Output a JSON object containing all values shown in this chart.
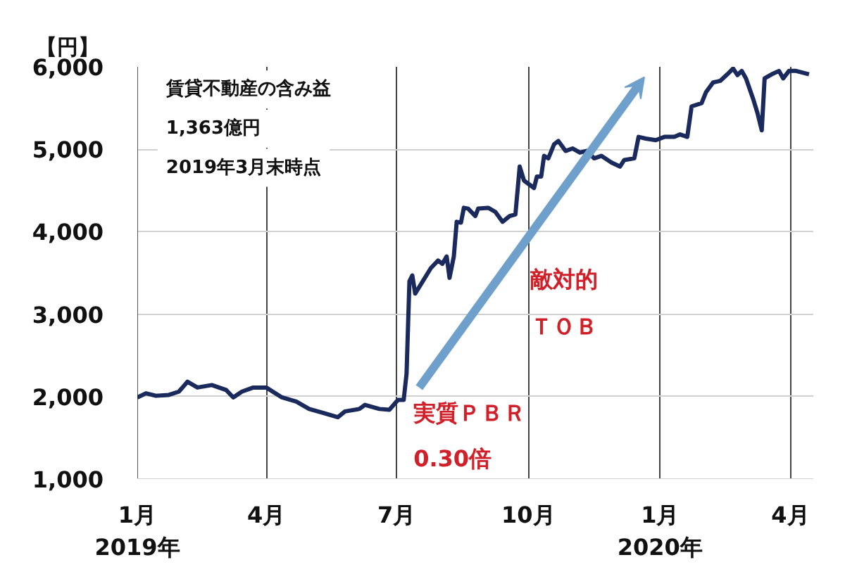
{
  "chart_data": {
    "type": "line",
    "ylabel": "【円】",
    "x": [
      "2019-01-01",
      "2019-01-07",
      "2019-01-14",
      "2019-01-23",
      "2019-01-30",
      "2019-02-05",
      "2019-02-12",
      "2019-02-22",
      "2019-03-04",
      "2019-03-09",
      "2019-03-15",
      "2019-03-23",
      "2019-04-01",
      "2019-04-12",
      "2019-04-22",
      "2019-05-01",
      "2019-05-11",
      "2019-05-21",
      "2019-05-26",
      "2019-06-05",
      "2019-06-09",
      "2019-06-19",
      "2019-06-26",
      "2019-07-02",
      "2019-07-06",
      "2019-07-08",
      "2019-07-10",
      "2019-07-12",
      "2019-07-14",
      "2019-07-19",
      "2019-07-25",
      "2019-07-30",
      "2019-08-02",
      "2019-08-05",
      "2019-08-07",
      "2019-08-10",
      "2019-08-12",
      "2019-08-15",
      "2019-08-17",
      "2019-08-20",
      "2019-08-25",
      "2019-08-27",
      "2019-09-03",
      "2019-09-08",
      "2019-09-13",
      "2019-09-18",
      "2019-09-22",
      "2019-09-25",
      "2019-09-28",
      "2019-10-05",
      "2019-10-07",
      "2019-10-10",
      "2019-10-12",
      "2019-10-15",
      "2019-10-19",
      "2019-10-22",
      "2019-10-27",
      "2019-11-01",
      "2019-11-06",
      "2019-11-11",
      "2019-11-16",
      "2019-11-21",
      "2019-11-28",
      "2019-12-04",
      "2019-12-07",
      "2019-12-14",
      "2019-12-17",
      "2019-12-22",
      "2019-12-29",
      "2020-01-04",
      "2020-01-11",
      "2020-01-15",
      "2020-01-20",
      "2020-01-23",
      "2020-01-30",
      "2020-02-02",
      "2020-02-07",
      "2020-02-12",
      "2020-02-17",
      "2020-02-21",
      "2020-02-24",
      "2020-02-27",
      "2020-03-01",
      "2020-03-06",
      "2020-03-09",
      "2020-03-12",
      "2020-03-14",
      "2020-03-19",
      "2020-03-24",
      "2020-03-27",
      "2020-03-31",
      "2020-04-05",
      "2020-04-14"
    ],
    "series": [
      {
        "color": "#1a2a5c",
        "values": [
          1990,
          2040,
          2010,
          2020,
          2060,
          2180,
          2110,
          2140,
          2080,
          1990,
          2060,
          2110,
          2110,
          1990,
          1940,
          1850,
          1800,
          1750,
          1820,
          1850,
          1900,
          1850,
          1840,
          1960,
          1960,
          2280,
          3400,
          3470,
          3250,
          3390,
          3560,
          3650,
          3610,
          3700,
          3440,
          3700,
          4120,
          4110,
          4290,
          4280,
          4190,
          4280,
          4290,
          4240,
          4120,
          4190,
          4210,
          4790,
          4620,
          4530,
          4670,
          4670,
          4920,
          4890,
          5060,
          5100,
          4980,
          5010,
          4960,
          4980,
          4890,
          4920,
          4840,
          4790,
          4870,
          4890,
          5150,
          5130,
          5110,
          5150,
          5150,
          5180,
          5150,
          5520,
          5560,
          5690,
          5810,
          5830,
          5910,
          5980,
          5900,
          5950,
          5860,
          5610,
          5440,
          5230,
          5860,
          5910,
          5950,
          5860,
          5950,
          5950,
          5910
        ]
      }
    ],
    "xlim": [
      "2019-01-01",
      "2020-04-17"
    ],
    "xticks": [
      {
        "value": "2019-01-01",
        "label": "1月\n2019年"
      },
      {
        "value": "2019-04-01",
        "label": "4月"
      },
      {
        "value": "2019-07-01",
        "label": "7月"
      },
      {
        "value": "2019-10-01",
        "label": "10月"
      },
      {
        "value": "2020-01-01",
        "label": "1月\n2020年"
      },
      {
        "value": "2020-04-01",
        "label": "4月"
      }
    ],
    "ylim": [
      1000,
      6000
    ],
    "yticks": [
      {
        "value": 1000,
        "label": "1,000"
      },
      {
        "value": 2000,
        "label": "2,000"
      },
      {
        "value": 3000,
        "label": "3,000"
      },
      {
        "value": 4000,
        "label": "4,000"
      },
      {
        "value": 5000,
        "label": "5,000"
      },
      {
        "value": 6000,
        "label": "6,000"
      }
    ],
    "grid": true,
    "annotations": [
      "賃貸不動産の含み益",
      "1,363億円",
      "2019年3月末時点",
      "敵対的",
      "ＴＯＢ",
      "実質ＰＢＲ",
      "0.30倍"
    ]
  }
}
